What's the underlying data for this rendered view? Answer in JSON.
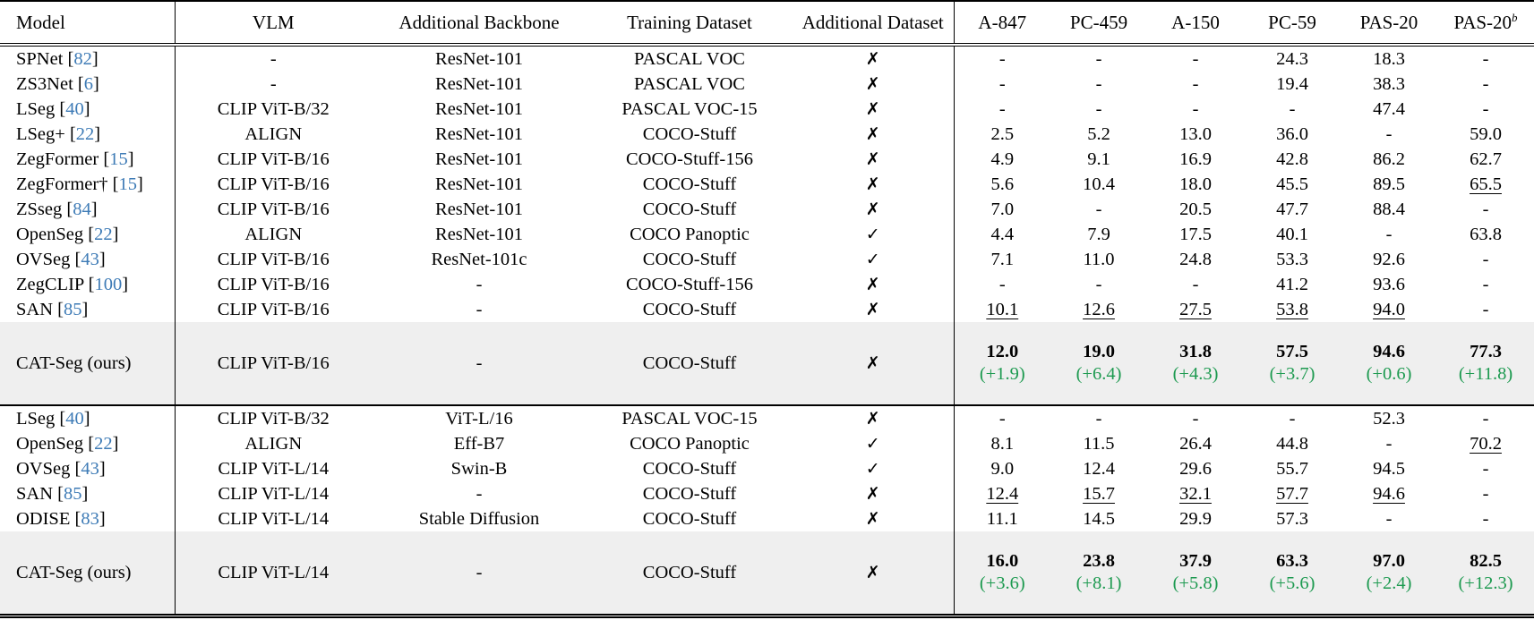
{
  "colors": {
    "citation_blue": "#3e7bb6",
    "delta_green": "#1d9a50",
    "highlight_row_bg": "#efefef"
  },
  "icons": {
    "cross": "✗",
    "check": "✓"
  },
  "header": {
    "columns": [
      {
        "label": "Model"
      },
      {
        "label": "VLM"
      },
      {
        "label": "Additional Backbone"
      },
      {
        "label": "Training Dataset"
      },
      {
        "label": "Additional Dataset"
      },
      {
        "label": "A-847"
      },
      {
        "label": "PC-459"
      },
      {
        "label": "A-150"
      },
      {
        "label": "PC-59"
      },
      {
        "label": "PAS-20"
      },
      {
        "label": "PAS-20",
        "sup": "b"
      }
    ]
  },
  "sections": [
    {
      "rows": [
        {
          "model": {
            "name": "SPNet",
            "cite": "82"
          },
          "vlm": "-",
          "backbone": "ResNet-101",
          "training": "PASCAL VOC",
          "additional_dataset": "cross",
          "scores": [
            {
              "v": "-"
            },
            {
              "v": "-"
            },
            {
              "v": "-"
            },
            {
              "v": "24.3"
            },
            {
              "v": "18.3"
            },
            {
              "v": "-"
            }
          ]
        },
        {
          "model": {
            "name": "ZS3Net",
            "cite": "6"
          },
          "vlm": "-",
          "backbone": "ResNet-101",
          "training": "PASCAL VOC",
          "additional_dataset": "cross",
          "scores": [
            {
              "v": "-"
            },
            {
              "v": "-"
            },
            {
              "v": "-"
            },
            {
              "v": "19.4"
            },
            {
              "v": "38.3"
            },
            {
              "v": "-"
            }
          ]
        },
        {
          "model": {
            "name": "LSeg",
            "cite": "40"
          },
          "vlm": "CLIP ViT-B/32",
          "backbone": "ResNet-101",
          "training": "PASCAL VOC-15",
          "additional_dataset": "cross",
          "scores": [
            {
              "v": "-"
            },
            {
              "v": "-"
            },
            {
              "v": "-"
            },
            {
              "v": "-"
            },
            {
              "v": "47.4"
            },
            {
              "v": "-"
            }
          ]
        },
        {
          "model": {
            "name": "LSeg+",
            "cite": "22"
          },
          "vlm": "ALIGN",
          "backbone": "ResNet-101",
          "training": "COCO-Stuff",
          "additional_dataset": "cross",
          "scores": [
            {
              "v": "2.5"
            },
            {
              "v": "5.2"
            },
            {
              "v": "13.0"
            },
            {
              "v": "36.0"
            },
            {
              "v": "-"
            },
            {
              "v": "59.0"
            }
          ]
        },
        {
          "model": {
            "name": "ZegFormer",
            "cite": "15"
          },
          "vlm": "CLIP ViT-B/16",
          "backbone": "ResNet-101",
          "training": "COCO-Stuff-156",
          "additional_dataset": "cross",
          "scores": [
            {
              "v": "4.9"
            },
            {
              "v": "9.1"
            },
            {
              "v": "16.9"
            },
            {
              "v": "42.8"
            },
            {
              "v": "86.2"
            },
            {
              "v": "62.7"
            }
          ]
        },
        {
          "model": {
            "name": "ZegFormer†",
            "cite": "15"
          },
          "vlm": "CLIP ViT-B/16",
          "backbone": "ResNet-101",
          "training": "COCO-Stuff",
          "additional_dataset": "cross",
          "scores": [
            {
              "v": "5.6"
            },
            {
              "v": "10.4"
            },
            {
              "v": "18.0"
            },
            {
              "v": "45.5"
            },
            {
              "v": "89.5"
            },
            {
              "v": "65.5",
              "underline": true
            }
          ]
        },
        {
          "model": {
            "name": "ZSseg",
            "cite": "84"
          },
          "vlm": "CLIP ViT-B/16",
          "backbone": "ResNet-101",
          "training": "COCO-Stuff",
          "additional_dataset": "cross",
          "scores": [
            {
              "v": "7.0"
            },
            {
              "v": "-"
            },
            {
              "v": "20.5"
            },
            {
              "v": "47.7"
            },
            {
              "v": "88.4"
            },
            {
              "v": "-"
            }
          ]
        },
        {
          "model": {
            "name": "OpenSeg",
            "cite": "22"
          },
          "vlm": "ALIGN",
          "backbone": "ResNet-101",
          "training": "COCO Panoptic",
          "additional_dataset": "check",
          "scores": [
            {
              "v": "4.4"
            },
            {
              "v": "7.9"
            },
            {
              "v": "17.5"
            },
            {
              "v": "40.1"
            },
            {
              "v": "-"
            },
            {
              "v": "63.8"
            }
          ]
        },
        {
          "model": {
            "name": "OVSeg",
            "cite": "43"
          },
          "vlm": "CLIP ViT-B/16",
          "backbone": "ResNet-101c",
          "training": "COCO-Stuff",
          "additional_dataset": "check",
          "scores": [
            {
              "v": "7.1"
            },
            {
              "v": "11.0"
            },
            {
              "v": "24.8"
            },
            {
              "v": "53.3"
            },
            {
              "v": "92.6"
            },
            {
              "v": "-"
            }
          ]
        },
        {
          "model": {
            "name": "ZegCLIP",
            "cite": "100"
          },
          "vlm": "CLIP ViT-B/16",
          "backbone": "-",
          "training": "COCO-Stuff-156",
          "additional_dataset": "cross",
          "scores": [
            {
              "v": "-"
            },
            {
              "v": "-"
            },
            {
              "v": "-"
            },
            {
              "v": "41.2"
            },
            {
              "v": "93.6"
            },
            {
              "v": "-"
            }
          ]
        },
        {
          "model": {
            "name": "SAN",
            "cite": "85"
          },
          "vlm": "CLIP ViT-B/16",
          "backbone": "-",
          "training": "COCO-Stuff",
          "additional_dataset": "cross",
          "scores": [
            {
              "v": "10.1",
              "underline": true
            },
            {
              "v": "12.6",
              "underline": true
            },
            {
              "v": "27.5",
              "underline": true
            },
            {
              "v": "53.8",
              "underline": true
            },
            {
              "v": "94.0",
              "underline": true
            },
            {
              "v": "-"
            }
          ]
        },
        {
          "model": {
            "name": "CAT-Seg (ours)"
          },
          "highlight": true,
          "vlm": "CLIP ViT-B/16",
          "backbone": "-",
          "training": "COCO-Stuff",
          "additional_dataset": "cross",
          "scores": [
            {
              "v": "12.0",
              "bold": true,
              "delta": "(+1.9)"
            },
            {
              "v": "19.0",
              "bold": true,
              "delta": "(+6.4)"
            },
            {
              "v": "31.8",
              "bold": true,
              "delta": "(+4.3)"
            },
            {
              "v": "57.5",
              "bold": true,
              "delta": "(+3.7)"
            },
            {
              "v": "94.6",
              "bold": true,
              "delta": "(+0.6)"
            },
            {
              "v": "77.3",
              "bold": true,
              "delta": "(+11.8)"
            }
          ]
        }
      ]
    },
    {
      "rows": [
        {
          "model": {
            "name": "LSeg",
            "cite": "40"
          },
          "vlm": "CLIP ViT-B/32",
          "backbone": "ViT-L/16",
          "training": "PASCAL VOC-15",
          "additional_dataset": "cross",
          "scores": [
            {
              "v": "-"
            },
            {
              "v": "-"
            },
            {
              "v": "-"
            },
            {
              "v": "-"
            },
            {
              "v": "52.3"
            },
            {
              "v": "-"
            }
          ]
        },
        {
          "model": {
            "name": "OpenSeg",
            "cite": "22"
          },
          "vlm": "ALIGN",
          "backbone": "Eff-B7",
          "training": "COCO Panoptic",
          "additional_dataset": "check",
          "scores": [
            {
              "v": "8.1"
            },
            {
              "v": "11.5"
            },
            {
              "v": "26.4"
            },
            {
              "v": "44.8"
            },
            {
              "v": "-"
            },
            {
              "v": "70.2",
              "underline": true
            }
          ]
        },
        {
          "model": {
            "name": "OVSeg",
            "cite": "43"
          },
          "vlm": "CLIP ViT-L/14",
          "backbone": "Swin-B",
          "training": "COCO-Stuff",
          "additional_dataset": "check",
          "scores": [
            {
              "v": "9.0"
            },
            {
              "v": "12.4"
            },
            {
              "v": "29.6"
            },
            {
              "v": "55.7"
            },
            {
              "v": "94.5"
            },
            {
              "v": "-"
            }
          ]
        },
        {
          "model": {
            "name": "SAN",
            "cite": "85"
          },
          "vlm": "CLIP ViT-L/14",
          "backbone": "-",
          "training": "COCO-Stuff",
          "additional_dataset": "cross",
          "scores": [
            {
              "v": "12.4",
              "underline": true
            },
            {
              "v": "15.7",
              "underline": true
            },
            {
              "v": "32.1",
              "underline": true
            },
            {
              "v": "57.7",
              "underline": true
            },
            {
              "v": "94.6",
              "underline": true
            },
            {
              "v": "-"
            }
          ]
        },
        {
          "model": {
            "name": "ODISE",
            "cite": "83"
          },
          "vlm": "CLIP ViT-L/14",
          "backbone": "Stable Diffusion",
          "training": "COCO-Stuff",
          "additional_dataset": "cross",
          "scores": [
            {
              "v": "11.1"
            },
            {
              "v": "14.5"
            },
            {
              "v": "29.9"
            },
            {
              "v": "57.3"
            },
            {
              "v": "-"
            },
            {
              "v": "-"
            }
          ]
        },
        {
          "model": {
            "name": "CAT-Seg (ours)"
          },
          "highlight": true,
          "vlm": "CLIP ViT-L/14",
          "backbone": "-",
          "training": "COCO-Stuff",
          "additional_dataset": "cross",
          "scores": [
            {
              "v": "16.0",
              "bold": true,
              "delta": "(+3.6)"
            },
            {
              "v": "23.8",
              "bold": true,
              "delta": "(+8.1)"
            },
            {
              "v": "37.9",
              "bold": true,
              "delta": "(+5.8)"
            },
            {
              "v": "63.3",
              "bold": true,
              "delta": "(+5.6)"
            },
            {
              "v": "97.0",
              "bold": true,
              "delta": "(+2.4)"
            },
            {
              "v": "82.5",
              "bold": true,
              "delta": "(+12.3)"
            }
          ]
        }
      ]
    }
  ]
}
